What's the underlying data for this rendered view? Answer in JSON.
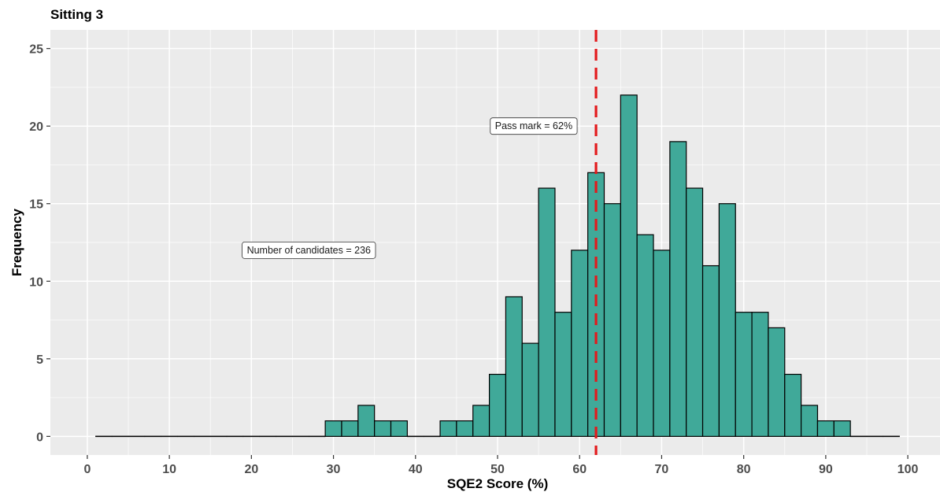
{
  "chart_data": {
    "type": "bar",
    "title": "Sitting 3",
    "xlabel": "SQE2 Score (%)",
    "ylabel": "Frequency",
    "xlim": [
      -4.5,
      104.5
    ],
    "ylim": [
      -1.2,
      26.2
    ],
    "x_ticks": [
      0,
      10,
      20,
      30,
      40,
      50,
      60,
      70,
      80,
      90,
      100
    ],
    "y_ticks": [
      0,
      5,
      10,
      15,
      20,
      25
    ],
    "bin_width": 2,
    "bins_start": [
      1,
      3,
      5,
      7,
      9,
      11,
      13,
      15,
      17,
      19,
      21,
      23,
      25,
      27,
      29,
      31,
      33,
      35,
      37,
      39,
      41,
      43,
      45,
      47,
      49,
      51,
      53,
      55,
      57,
      59,
      61,
      63,
      65,
      67,
      69,
      71,
      73,
      75,
      77,
      79,
      81,
      83,
      85,
      87,
      89,
      91,
      93,
      95,
      97
    ],
    "values": [
      0,
      0,
      0,
      0,
      0,
      0,
      0,
      0,
      0,
      0,
      0,
      0,
      0,
      0,
      1,
      1,
      2,
      1,
      1,
      0,
      0,
      1,
      1,
      2,
      4,
      9,
      6,
      16,
      8,
      12,
      17,
      15,
      22,
      13,
      12,
      19,
      16,
      11,
      15,
      8,
      8,
      7,
      4,
      2,
      1,
      1,
      0,
      0,
      0
    ],
    "fill_color": "#40A999",
    "edge_color": "#000000",
    "grid": true,
    "vline": {
      "x": 62,
      "color": "#E31A1C",
      "style": "dashed"
    },
    "annotations": [
      {
        "text": "Pass mark = 62%",
        "x": 62,
        "y": 20,
        "anchor": "right"
      },
      {
        "text": "Number of candidates = 236",
        "x": 27,
        "y": 12,
        "anchor": "center"
      }
    ]
  }
}
